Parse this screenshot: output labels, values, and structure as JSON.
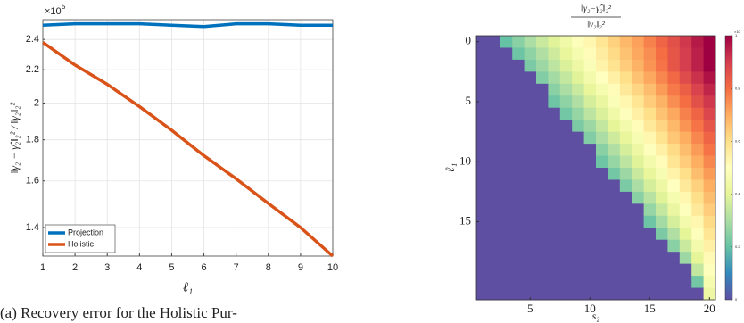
{
  "caption": "(a) Recovery error for the Holistic Pur-",
  "chart_data": [
    {
      "type": "line",
      "xlabel": "ℓ₁",
      "ylabel": "‖γ₂ − γ̂₂‖₂² / ‖γ₂‖₂²",
      "multiplier": "×10",
      "multiplier_exponent": "5",
      "x": [
        1,
        2,
        3,
        4,
        5,
        6,
        7,
        8,
        9,
        10
      ],
      "series": [
        {
          "name": "Projection",
          "color": "#0072bd",
          "values": [
            2.5,
            2.51,
            2.51,
            2.51,
            2.5,
            2.49,
            2.51,
            2.51,
            2.5,
            2.5
          ]
        },
        {
          "name": "Holistic",
          "color": "#d95319",
          "values": [
            2.38,
            2.23,
            2.11,
            1.98,
            1.85,
            1.72,
            1.61,
            1.5,
            1.4,
            1.29
          ]
        }
      ],
      "xlim": [
        1,
        10
      ],
      "xticks": [
        1,
        2,
        3,
        4,
        5,
        6,
        7,
        8,
        9,
        10
      ],
      "ylim": [
        1.29,
        2.54
      ],
      "yticks": [
        1.4,
        1.6,
        1.8,
        2,
        2.2,
        2.4
      ],
      "log_y": true,
      "grid": true,
      "legend": "lower left"
    },
    {
      "type": "heatmap",
      "title_numerator": "‖γ₂−γ̂₂‖₂²",
      "title_denominator": "‖γ₂‖₂²",
      "xlabel": "s₂",
      "ylabel": "ℓ₁",
      "x": [
        1,
        2,
        3,
        4,
        5,
        6,
        7,
        8,
        9,
        10,
        11,
        12,
        13,
        14,
        15,
        16,
        17,
        18,
        19,
        20
      ],
      "y": [
        0,
        1,
        2,
        3,
        4,
        5,
        6,
        7,
        8,
        9,
        10,
        11,
        12,
        13,
        14,
        15,
        16,
        17,
        18,
        19,
        20,
        21
      ],
      "values": [
        [
          0,
          0,
          0.2,
          0.25,
          0.3,
          0.35,
          0.39,
          0.44,
          0.49,
          0.53,
          0.58,
          0.63,
          0.68,
          0.72,
          0.77,
          0.82,
          0.86,
          0.91,
          0.96,
          1.0
        ],
        [
          0,
          0,
          0,
          0.21,
          0.26,
          0.31,
          0.36,
          0.41,
          0.46,
          0.51,
          0.56,
          0.61,
          0.66,
          0.71,
          0.75,
          0.8,
          0.85,
          0.9,
          0.95,
          1.0
        ],
        [
          0,
          0,
          0,
          0,
          0.23,
          0.28,
          0.33,
          0.38,
          0.43,
          0.48,
          0.54,
          0.59,
          0.64,
          0.69,
          0.74,
          0.79,
          0.85,
          0.9,
          0.95,
          1.0
        ],
        [
          0,
          0,
          0,
          0,
          0,
          0.24,
          0.29,
          0.34,
          0.39,
          0.45,
          0.5,
          0.55,
          0.6,
          0.66,
          0.71,
          0.76,
          0.81,
          0.87,
          0.92,
          0.97
        ],
        [
          0,
          0,
          0,
          0,
          0,
          0,
          0.25,
          0.3,
          0.35,
          0.41,
          0.46,
          0.51,
          0.57,
          0.62,
          0.67,
          0.73,
          0.78,
          0.83,
          0.89,
          0.94
        ],
        [
          0,
          0,
          0,
          0,
          0,
          0,
          0.21,
          0.26,
          0.31,
          0.37,
          0.42,
          0.48,
          0.53,
          0.58,
          0.64,
          0.69,
          0.75,
          0.8,
          0.86,
          0.91
        ],
        [
          0,
          0,
          0,
          0,
          0,
          0,
          0,
          0.22,
          0.27,
          0.33,
          0.38,
          0.44,
          0.49,
          0.55,
          0.6,
          0.66,
          0.71,
          0.77,
          0.82,
          0.88
        ],
        [
          0,
          0,
          0,
          0,
          0,
          0,
          0,
          0,
          0.23,
          0.28,
          0.34,
          0.4,
          0.45,
          0.51,
          0.57,
          0.62,
          0.68,
          0.74,
          0.79,
          0.85
        ],
        [
          0,
          0,
          0,
          0,
          0,
          0,
          0,
          0,
          0,
          0.24,
          0.3,
          0.36,
          0.41,
          0.47,
          0.53,
          0.59,
          0.65,
          0.7,
          0.76,
          0.82
        ],
        [
          0,
          0,
          0,
          0,
          0,
          0,
          0,
          0,
          0,
          0,
          0.25,
          0.31,
          0.37,
          0.43,
          0.49,
          0.55,
          0.61,
          0.67,
          0.73,
          0.79
        ],
        [
          0,
          0,
          0,
          0,
          0,
          0,
          0,
          0,
          0,
          0,
          0.21,
          0.27,
          0.33,
          0.39,
          0.45,
          0.51,
          0.58,
          0.64,
          0.7,
          0.76
        ],
        [
          0,
          0,
          0,
          0,
          0,
          0,
          0,
          0,
          0,
          0,
          0,
          0.22,
          0.28,
          0.35,
          0.41,
          0.47,
          0.54,
          0.6,
          0.67,
          0.73
        ],
        [
          0,
          0,
          0,
          0,
          0,
          0,
          0,
          0,
          0,
          0,
          0,
          0,
          0.23,
          0.3,
          0.37,
          0.43,
          0.5,
          0.57,
          0.63,
          0.7
        ],
        [
          0,
          0,
          0,
          0,
          0,
          0,
          0,
          0,
          0,
          0,
          0,
          0,
          0,
          0.25,
          0.32,
          0.39,
          0.46,
          0.53,
          0.6,
          0.67
        ],
        [
          0,
          0,
          0,
          0,
          0,
          0,
          0,
          0,
          0,
          0,
          0,
          0,
          0,
          0,
          0.27,
          0.34,
          0.42,
          0.49,
          0.57,
          0.64
        ],
        [
          0,
          0,
          0,
          0,
          0,
          0,
          0,
          0,
          0,
          0,
          0,
          0,
          0,
          0,
          0.21,
          0.29,
          0.37,
          0.45,
          0.53,
          0.61
        ],
        [
          0,
          0,
          0,
          0,
          0,
          0,
          0,
          0,
          0,
          0,
          0,
          0,
          0,
          0,
          0,
          0.23,
          0.31,
          0.4,
          0.49,
          0.58
        ],
        [
          0,
          0,
          0,
          0,
          0,
          0,
          0,
          0,
          0,
          0,
          0,
          0,
          0,
          0,
          0,
          0,
          0.25,
          0.35,
          0.45,
          0.55
        ],
        [
          0,
          0,
          0,
          0,
          0,
          0,
          0,
          0,
          0,
          0,
          0,
          0,
          0,
          0,
          0,
          0,
          0,
          0.28,
          0.4,
          0.52
        ],
        [
          0,
          0,
          0,
          0,
          0,
          0,
          0,
          0,
          0,
          0,
          0,
          0,
          0,
          0,
          0,
          0,
          0,
          0,
          0.34,
          0.49
        ],
        [
          0,
          0,
          0,
          0,
          0,
          0,
          0,
          0,
          0,
          0,
          0,
          0,
          0,
          0,
          0,
          0,
          0,
          0,
          0.22,
          0.46
        ],
        [
          0,
          0,
          0,
          0,
          0,
          0,
          0,
          0,
          0,
          0,
          0,
          0,
          0,
          0,
          0,
          0,
          0,
          0,
          0,
          0.43
        ]
      ],
      "xlim": [
        0.5,
        20.5
      ],
      "xticks": [
        5,
        10,
        15,
        20
      ],
      "ylim": [
        -0.5,
        21.5
      ],
      "yticks": [
        0,
        5,
        10,
        15
      ],
      "colormap": "Spectral_r",
      "zlim": [
        0,
        1
      ],
      "zticks": [
        0,
        0.2,
        0.4,
        0.6,
        0.8,
        1
      ],
      "colorbar_multiplier": "×10"
    }
  ]
}
